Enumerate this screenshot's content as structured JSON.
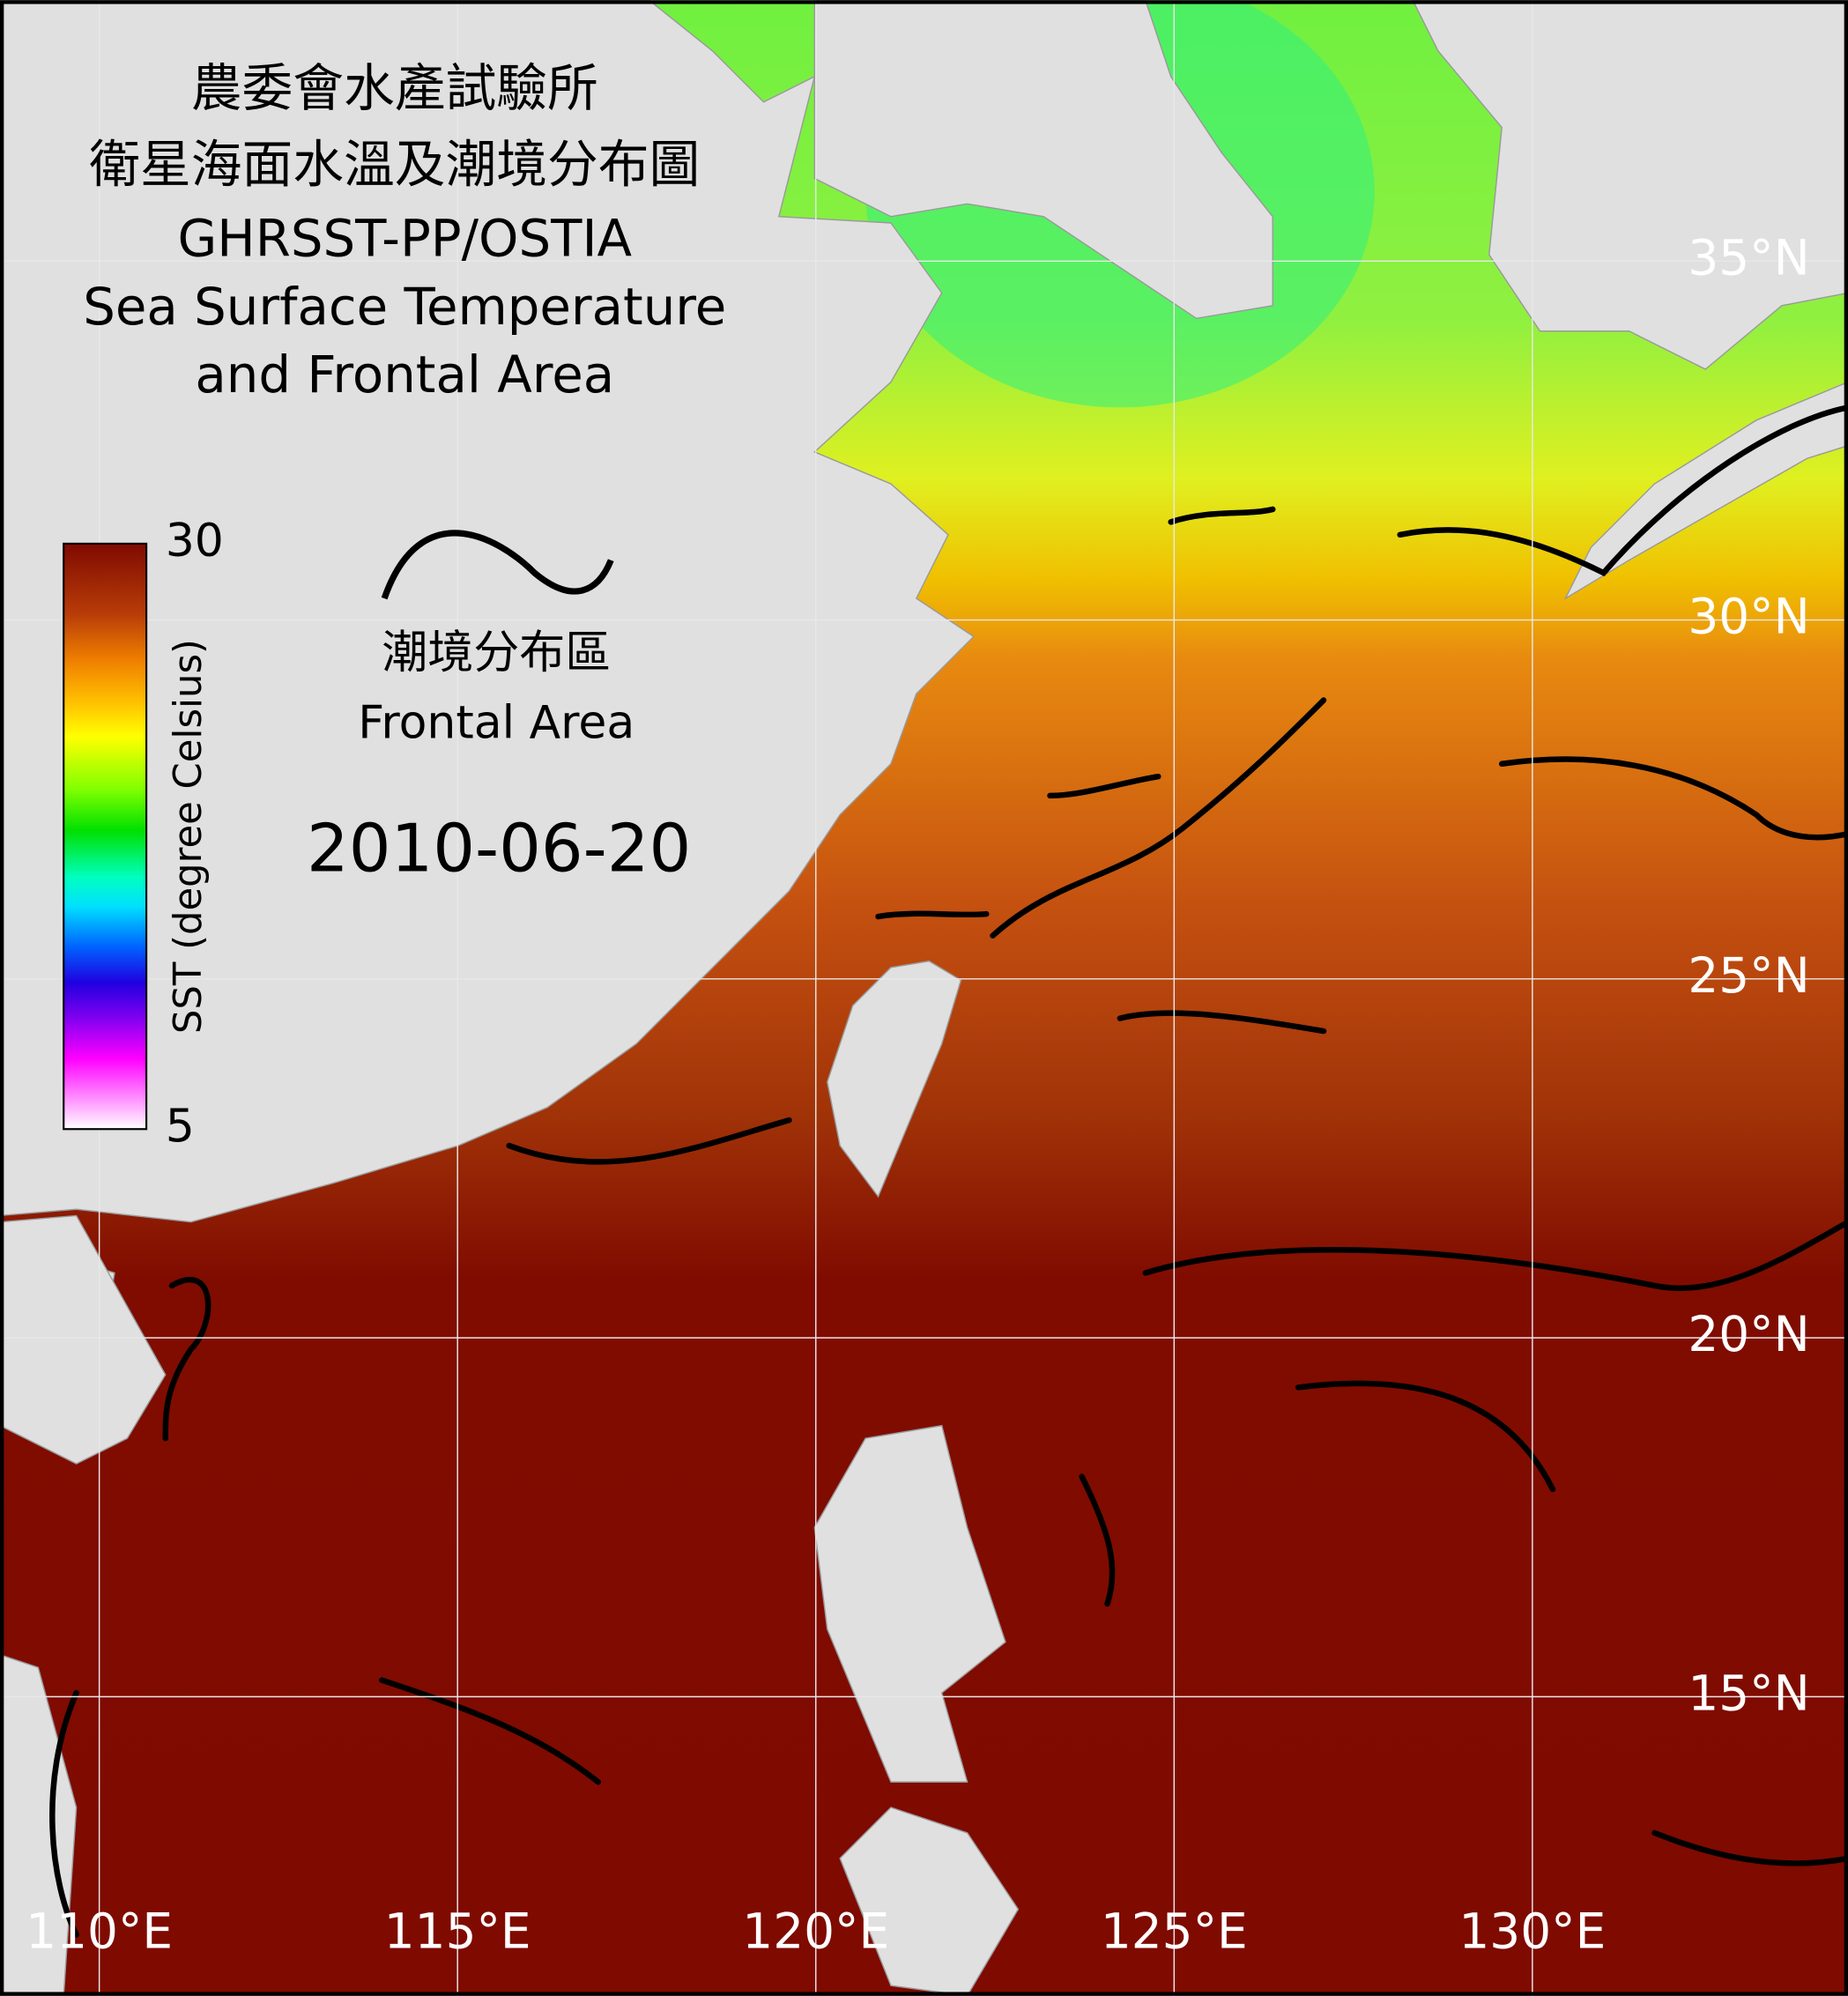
{
  "header": {
    "title_lines": [
      "農委會水產試驗所",
      "衛星海面水溫及潮境分布圖",
      "GHRSST-PP/OSTIA",
      "Sea Surface Temperature",
      "and Frontal Area"
    ]
  },
  "colorbar": {
    "label": "SST (degree Celsius)",
    "min": 5,
    "max": 30
  },
  "legend": {
    "label_zh": "潮境分布區",
    "label_en": "Frontal Area"
  },
  "date": "2010-06-20",
  "map": {
    "lat_ticks": [
      {
        "value": 35,
        "label": "35°N"
      },
      {
        "value": 30,
        "label": "30°N"
      },
      {
        "value": 25,
        "label": "25°N"
      },
      {
        "value": 20,
        "label": "20°N"
      },
      {
        "value": 15,
        "label": "15°N"
      }
    ],
    "lon_ticks": [
      {
        "value": 110,
        "label": "110°E"
      },
      {
        "value": 115,
        "label": "115°E"
      },
      {
        "value": 120,
        "label": "120°E"
      },
      {
        "value": 125,
        "label": "125°E"
      },
      {
        "value": 130,
        "label": "130°E"
      }
    ]
  }
}
